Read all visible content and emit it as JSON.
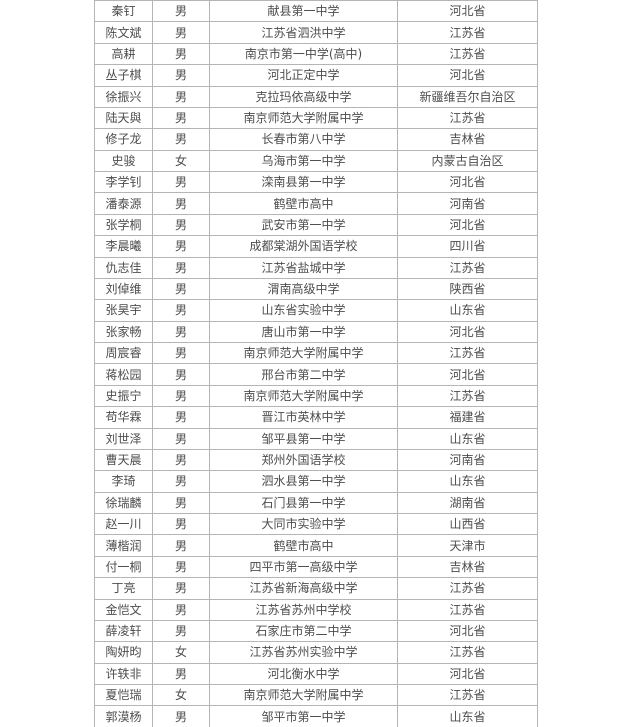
{
  "colors": {
    "background": "#ffffff",
    "table_border": "#b5b5b5",
    "cell_text": "#4d4d4d"
  },
  "table": {
    "column_keys": [
      "name",
      "gender",
      "school",
      "province"
    ],
    "rows": [
      [
        "秦钉",
        "男",
        "献县第一中学",
        "河北省"
      ],
      [
        "陈文斌",
        "男",
        "江苏省泗洪中学",
        "江苏省"
      ],
      [
        "高耕",
        "男",
        "南京市第一中学(高中)",
        "江苏省"
      ],
      [
        "丛子棋",
        "男",
        "河北正定中学",
        "河北省"
      ],
      [
        "徐振兴",
        "男",
        "克拉玛依高级中学",
        "新疆维吾尔自治区"
      ],
      [
        "陆天與",
        "男",
        "南京师范大学附属中学",
        "江苏省"
      ],
      [
        "修子龙",
        "男",
        "长春市第八中学",
        "吉林省"
      ],
      [
        "史骏",
        "女",
        "乌海市第一中学",
        "内蒙古自治区"
      ],
      [
        "李学钊",
        "男",
        "滦南县第一中学",
        "河北省"
      ],
      [
        "潘泰源",
        "男",
        "鹤壁市高中",
        "河南省"
      ],
      [
        "张学桐",
        "男",
        "武安市第一中学",
        "河北省"
      ],
      [
        "李晨曦",
        "男",
        "成都棠湖外国语学校",
        "四川省"
      ],
      [
        "仇志佳",
        "男",
        "江苏省盐城中学",
        "江苏省"
      ],
      [
        "刘倬维",
        "男",
        "渭南高级中学",
        "陕西省"
      ],
      [
        "张昊宇",
        "男",
        "山东省实验中学",
        "山东省"
      ],
      [
        "张家畅",
        "男",
        "唐山市第一中学",
        "河北省"
      ],
      [
        "周宸睿",
        "男",
        "南京师范大学附属中学",
        "江苏省"
      ],
      [
        "蒋松园",
        "男",
        "邢台市第二中学",
        "河北省"
      ],
      [
        "史振宁",
        "男",
        "南京师范大学附属中学",
        "江苏省"
      ],
      [
        "苟华霖",
        "男",
        "晋江市英林中学",
        "福建省"
      ],
      [
        "刘世泽",
        "男",
        "邹平县第一中学",
        "山东省"
      ],
      [
        "曹天晨",
        "男",
        "郑州外国语学校",
        "河南省"
      ],
      [
        "李琦",
        "男",
        "泗水县第一中学",
        "山东省"
      ],
      [
        "徐瑞麟",
        "男",
        "石门县第一中学",
        "湖南省"
      ],
      [
        "赵一川",
        "男",
        "大同市实验中学",
        "山西省"
      ],
      [
        "薄楷润",
        "男",
        "鹤壁市高中",
        "天津市"
      ],
      [
        "付一桐",
        "男",
        "四平市第一高级中学",
        "吉林省"
      ],
      [
        "丁亮",
        "男",
        "江苏省新海高级中学",
        "江苏省"
      ],
      [
        "金恺文",
        "男",
        "江苏省苏州中学校",
        "江苏省"
      ],
      [
        "薛凌轩",
        "男",
        "石家庄市第二中学",
        "河北省"
      ],
      [
        "陶妍昀",
        "女",
        "江苏省苏州实验中学",
        "江苏省"
      ],
      [
        "许轶非",
        "男",
        "河北衡水中学",
        "河北省"
      ],
      [
        "夏恺瑞",
        "女",
        "南京师范大学附属中学",
        "江苏省"
      ],
      [
        "郭漠杨",
        "男",
        "邹平市第一中学",
        "山东省"
      ]
    ]
  }
}
